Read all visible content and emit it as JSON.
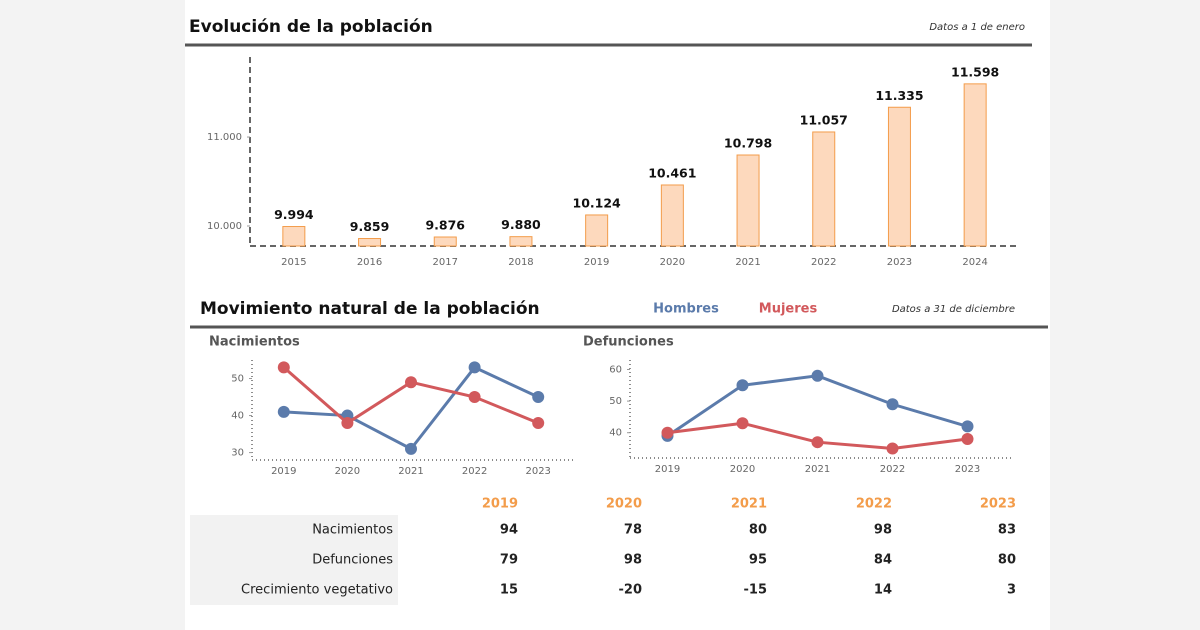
{
  "header": {
    "title": "Evolución de la población",
    "subtitle": "Datos a 1 de enero"
  },
  "section": {
    "title": "Movimiento natural de la población",
    "subtitle": "Datos a 31 de diciembre"
  },
  "chart_data": [
    {
      "type": "bar",
      "categories": [
        "2015",
        "2016",
        "2017",
        "2018",
        "2019",
        "2020",
        "2021",
        "2022",
        "2023",
        "2024"
      ],
      "values": [
        9994,
        9859,
        9876,
        9880,
        10124,
        10461,
        10798,
        11057,
        11335,
        11598
      ],
      "value_labels": [
        "9.994",
        "9.859",
        "9.876",
        "9.880",
        "10.124",
        "10.461",
        "10.798",
        "11.057",
        "11.335",
        "11.598"
      ],
      "color": "#fdd9bd",
      "edge_color": "#f39c4a",
      "ylim": [
        9775,
        11900
      ],
      "yticks": [
        {
          "value": 10000,
          "label": "10.000"
        },
        {
          "value": 11000,
          "label": "11.000"
        }
      ]
    },
    {
      "type": "line",
      "title": "Nacimientos",
      "categories": [
        "2019",
        "2020",
        "2021",
        "2022",
        "2023"
      ],
      "series": [
        {
          "name": "Hombres",
          "color": "#5b7bab",
          "values": [
            41,
            40,
            31,
            53,
            45
          ]
        },
        {
          "name": "Mujeres",
          "color": "#d2595c",
          "values": [
            53,
            38,
            49,
            45,
            38
          ]
        }
      ],
      "ylim": [
        28,
        55
      ],
      "yticks": [
        30,
        40,
        50
      ]
    },
    {
      "type": "line",
      "title": "Defunciones",
      "categories": [
        "2019",
        "2020",
        "2021",
        "2022",
        "2023"
      ],
      "series": [
        {
          "color": "#5b7bab",
          "values": [
            39,
            55,
            58,
            49,
            42
          ]
        },
        {
          "color": "#d2595c",
          "values": [
            40,
            43,
            37,
            35,
            38
          ]
        }
      ],
      "ylim": [
        32,
        63
      ],
      "yticks": [
        40,
        50,
        60
      ]
    }
  ],
  "table": {
    "columns": [
      "2019",
      "2020",
      "2021",
      "2022",
      "2023"
    ],
    "rows": [
      {
        "label": "Nacimientos",
        "values": [
          94,
          78,
          80,
          98,
          83
        ]
      },
      {
        "label": "Defunciones",
        "values": [
          79,
          98,
          95,
          84,
          80
        ]
      },
      {
        "label": "Crecimiento vegetativo",
        "values": [
          15,
          -20,
          -15,
          14,
          3
        ]
      }
    ]
  }
}
